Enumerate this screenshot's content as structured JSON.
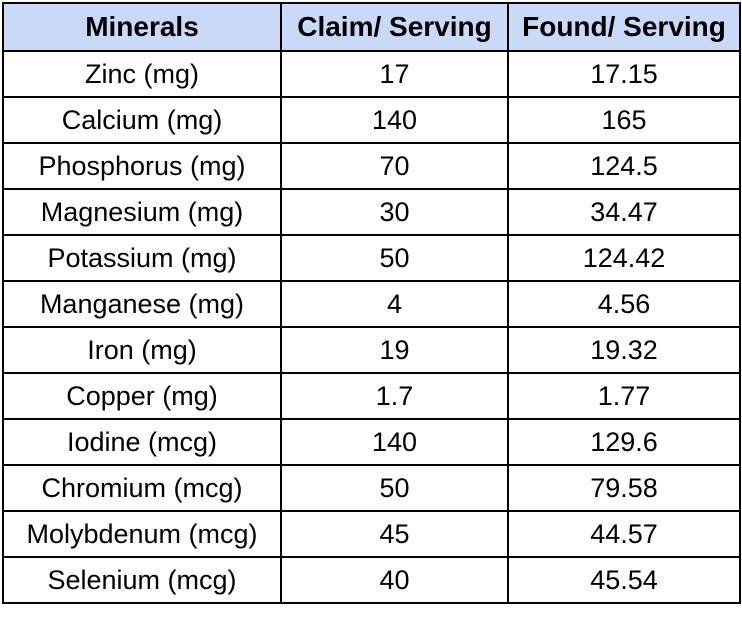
{
  "table": {
    "header_bg": "#c9daf8",
    "columns": [
      "Minerals",
      "Claim/ Serving",
      "Found/ Serving"
    ],
    "rows": [
      [
        "Zinc (mg)",
        "17",
        "17.15"
      ],
      [
        "Calcium (mg)",
        "140",
        "165"
      ],
      [
        "Phosphorus (mg)",
        "70",
        "124.5"
      ],
      [
        "Magnesium (mg)",
        "30",
        "34.47"
      ],
      [
        "Potassium (mg)",
        "50",
        "124.42"
      ],
      [
        "Manganese (mg)",
        "4",
        "4.56"
      ],
      [
        "Iron (mg)",
        "19",
        "19.32"
      ],
      [
        "Copper (mg)",
        "1.7",
        "1.77"
      ],
      [
        "Iodine (mcg)",
        "140",
        "129.6"
      ],
      [
        "Chromium (mcg)",
        "50",
        "79.58"
      ],
      [
        "Molybdenum (mcg)",
        "45",
        "44.57"
      ],
      [
        "Selenium (mcg)",
        "40",
        "45.54"
      ]
    ]
  }
}
